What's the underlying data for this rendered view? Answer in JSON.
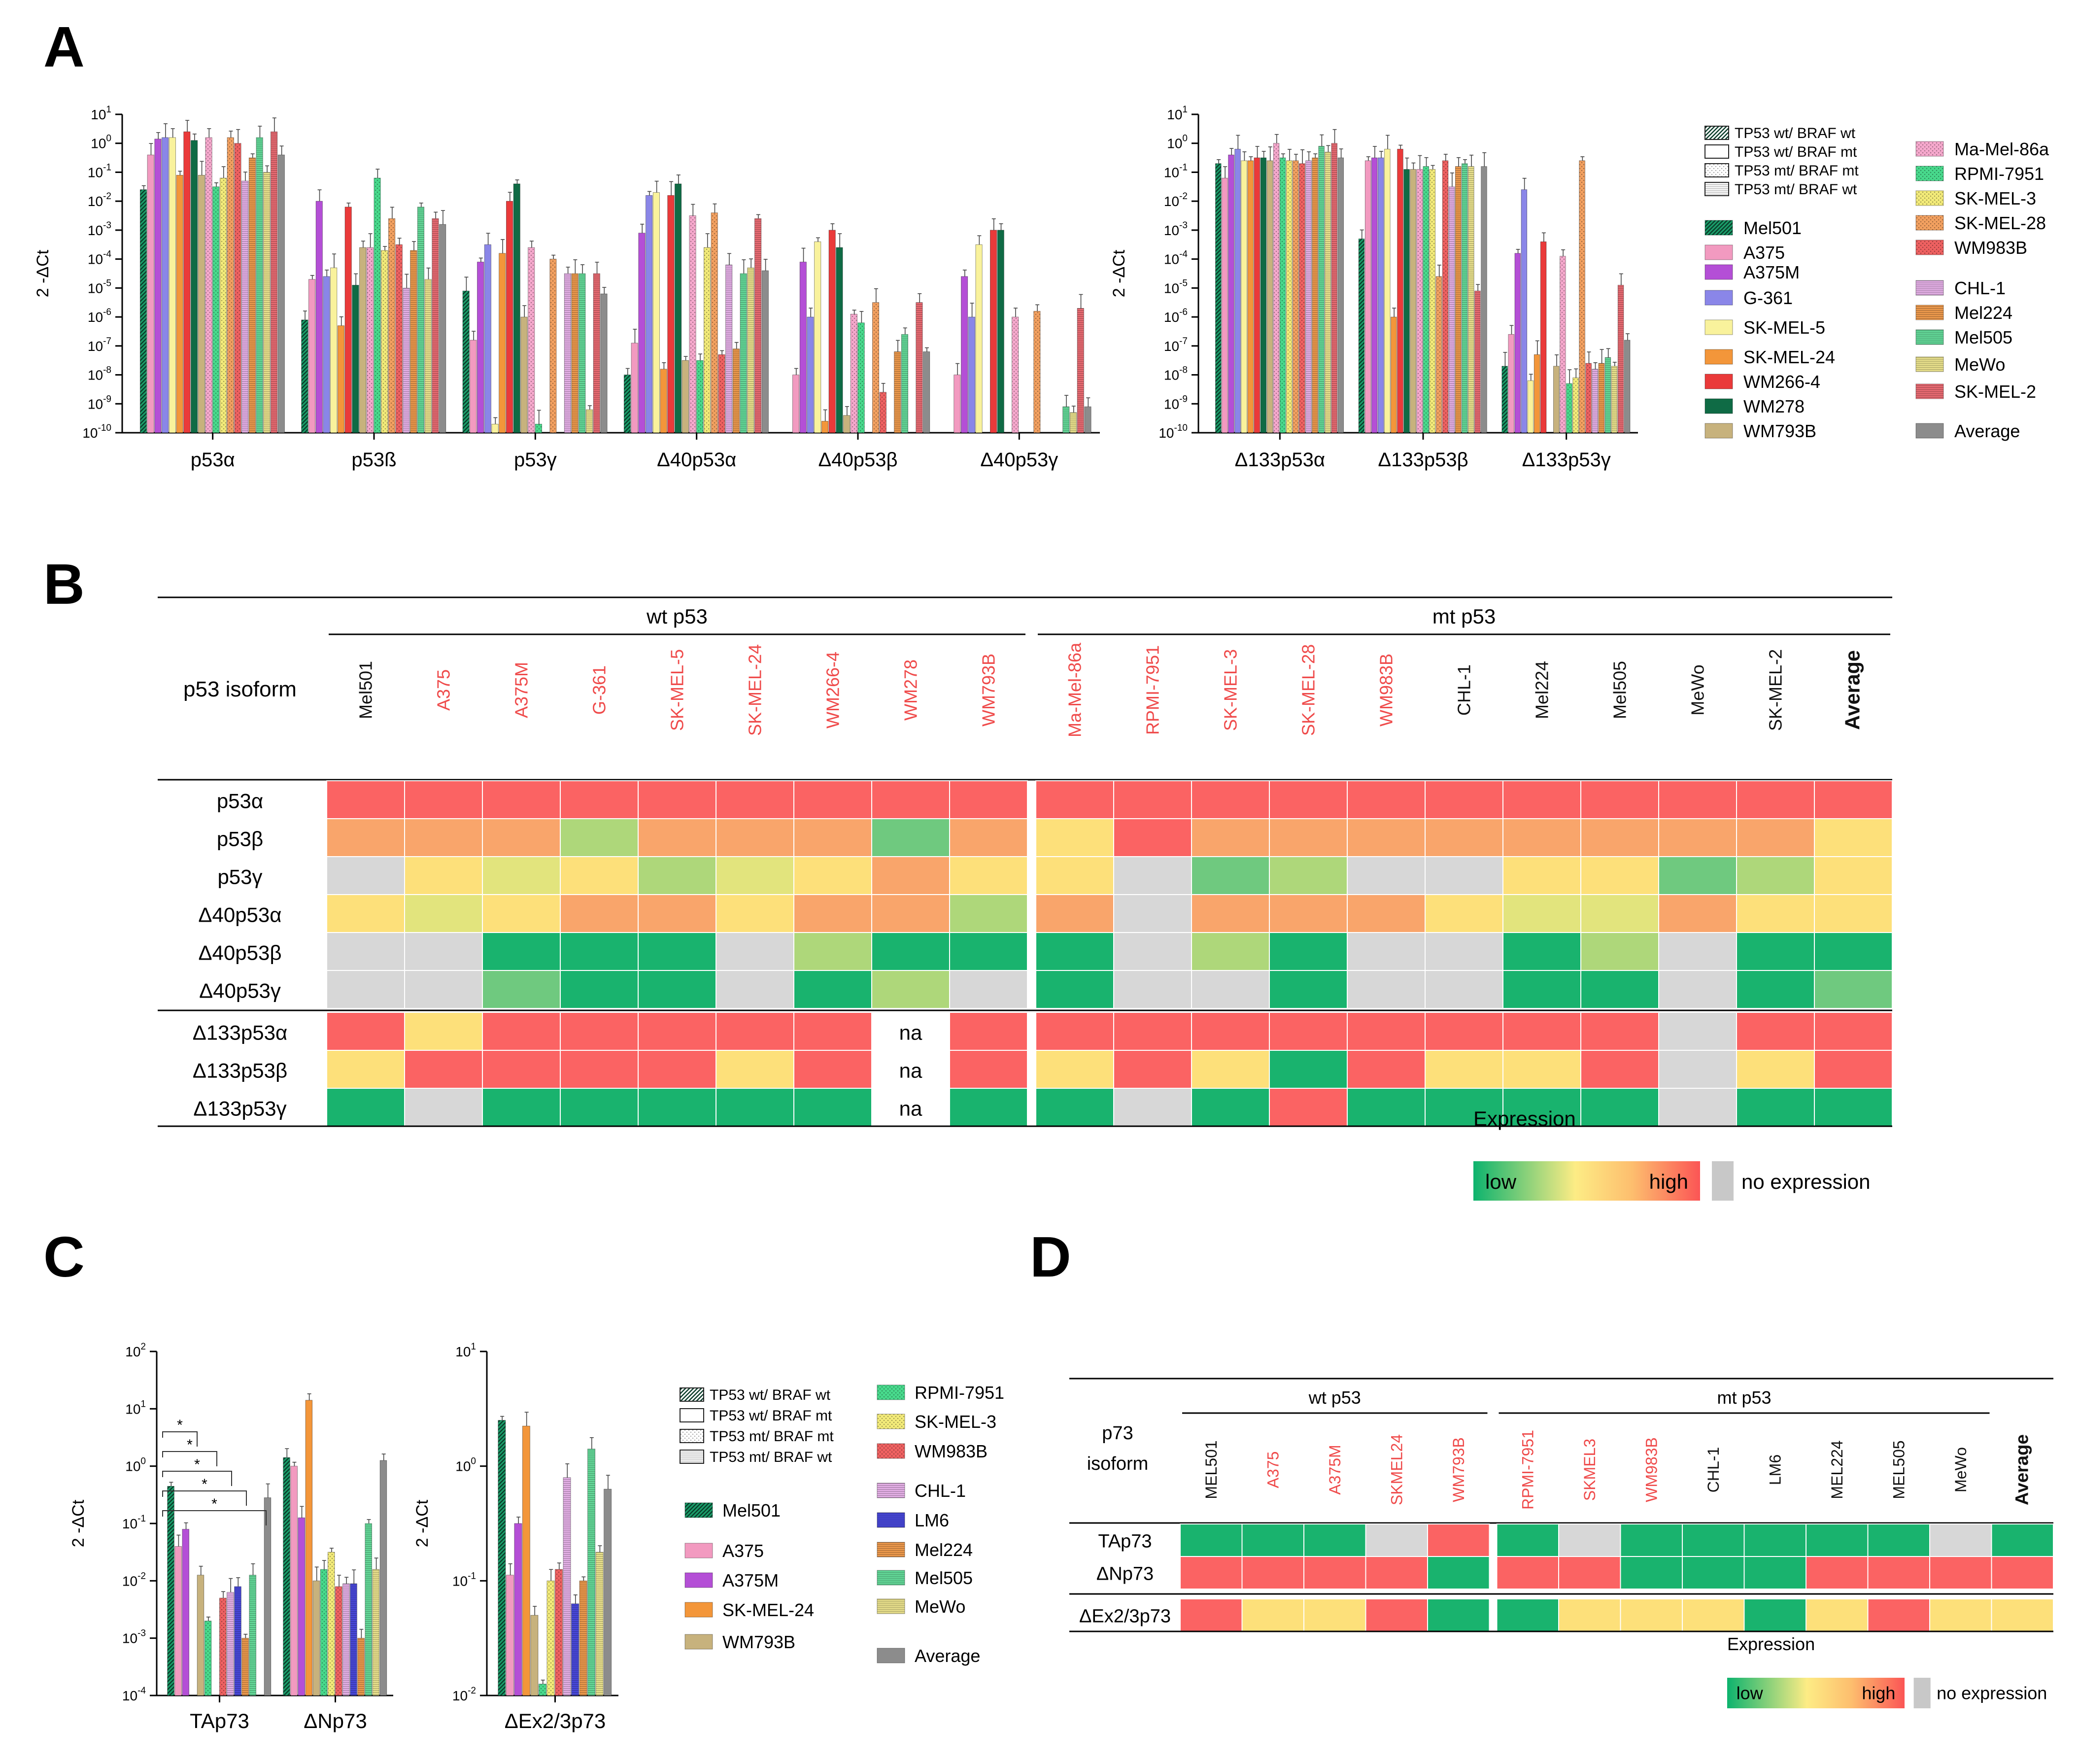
{
  "panel_labels": {
    "a": "A",
    "b": "B",
    "c": "C",
    "d": "D"
  },
  "axis_ylabel": "2 -ΔCt",
  "color_encoding": {
    "red": "#ef4b4b",
    "black": "#111111"
  },
  "cell_lines_p53": [
    {
      "name": "Mel501",
      "color": "#1a9e6a",
      "pattern": "hatch-dense",
      "red": false
    },
    {
      "name": "A375",
      "color": "#f29ac0",
      "pattern": "solid",
      "red": true
    },
    {
      "name": "A375M",
      "color": "#b44fd6",
      "pattern": "solid",
      "red": true
    },
    {
      "name": "G-361",
      "color": "#8a86e8",
      "pattern": "solid",
      "red": true
    },
    {
      "name": "SK-MEL-5",
      "color": "#f9f29c",
      "pattern": "solid",
      "red": true
    },
    {
      "name": "SK-MEL-24",
      "color": "#f3963a",
      "pattern": "solid",
      "red": true
    },
    {
      "name": "WM266-4",
      "color": "#ea3a3a",
      "pattern": "solid",
      "red": true
    },
    {
      "name": "WM278",
      "color": "#0f6b45",
      "pattern": "solid",
      "red": true
    },
    {
      "name": "WM793B",
      "color": "#c7b27d",
      "pattern": "solid",
      "red": true
    },
    {
      "name": "Ma-Mel-86a",
      "color": "#f5a8cc",
      "pattern": "dots",
      "red": true
    },
    {
      "name": "RPMI-7951",
      "color": "#48d98c",
      "pattern": "dots",
      "red": true
    },
    {
      "name": "SK-MEL-3",
      "color": "#f2ea79",
      "pattern": "dots",
      "red": true
    },
    {
      "name": "SK-MEL-28",
      "color": "#f2a060",
      "pattern": "dots",
      "red": true
    },
    {
      "name": "WM983B",
      "color": "#ee6161",
      "pattern": "dots",
      "red": true
    },
    {
      "name": "CHL-1",
      "color": "#eab4ec",
      "pattern": "hlines",
      "red": false
    },
    {
      "name": "Mel224",
      "color": "#f29d4e",
      "pattern": "hlines",
      "red": false
    },
    {
      "name": "Mel505",
      "color": "#66df9d",
      "pattern": "hlines",
      "red": false
    },
    {
      "name": "MeWo",
      "color": "#efe690",
      "pattern": "hlines",
      "red": false
    },
    {
      "name": "SK-MEL-2",
      "color": "#ee6d75",
      "pattern": "hlines",
      "red": false
    },
    {
      "name": "Average",
      "color": "#8c8c8c",
      "pattern": "solid",
      "red": false
    }
  ],
  "pattern_legend": [
    "TP53 wt/ BRAF wt",
    "TP53 wt/ BRAF mt",
    "TP53 mt/ BRAF mt",
    "TP53 mt/ BRAF wt"
  ],
  "chart_data": [
    {
      "id": "A-left",
      "type": "bar",
      "yscale": "log",
      "ylim_exp": [
        -10,
        1
      ],
      "ylabel": "2 -ΔCt",
      "categories": [
        "p53α",
        "p53ß",
        "p53γ",
        "Δ40p53α",
        "Δ40p53β",
        "Δ40p53γ"
      ],
      "values_log10": [
        [
          -1.6,
          -0.4,
          0.15,
          0.2,
          0.2,
          -1.1,
          0.4,
          0.1,
          -1.1,
          0.2,
          -1.5,
          -1.2,
          0.2,
          0.0,
          -1.3,
          -0.5,
          0.2,
          -1.0,
          0.4,
          -0.4
        ],
        [
          -6.1,
          -4.7,
          -2.0,
          -4.6,
          -4.3,
          -6.3,
          -2.2,
          -4.9,
          -3.6,
          -3.6,
          -1.2,
          -3.7,
          -2.6,
          -3.5,
          -5.0,
          -3.7,
          -2.2,
          -4.7,
          -2.6,
          -2.8
        ],
        [
          -5.1,
          -6.8,
          -4.1,
          -3.5,
          -9.7,
          -3.8,
          -2.0,
          -1.4,
          -6.0,
          -3.6,
          -9.7,
          null,
          -4.0,
          null,
          -4.5,
          -4.5,
          -4.5,
          -9.2,
          -4.5,
          -5.2
        ],
        [
          -8.0,
          -6.9,
          -3.1,
          -1.8,
          -1.7,
          -7.8,
          -1.8,
          -1.4,
          -7.5,
          -2.5,
          -7.5,
          -3.6,
          -2.4,
          -7.3,
          -4.2,
          -7.1,
          -4.5,
          -4.3,
          -2.6,
          -4.4
        ],
        [
          null,
          -8.0,
          -4.1,
          -6.0,
          -3.4,
          -9.6,
          -3.0,
          -3.6,
          -9.4,
          -5.9,
          -6.2,
          null,
          -5.5,
          -8.6,
          null,
          -7.2,
          -6.6,
          null,
          -5.5,
          -7.2
        ],
        [
          null,
          -8.0,
          -4.6,
          -6.0,
          -3.5,
          null,
          -3.0,
          -3.0,
          null,
          -6.0,
          null,
          null,
          -5.8,
          null,
          null,
          null,
          -9.1,
          -9.3,
          -5.7,
          -9.1
        ]
      ]
    },
    {
      "id": "A-right",
      "type": "bar",
      "yscale": "log",
      "ylim_exp": [
        -10,
        1
      ],
      "ylabel": "2 -ΔCt",
      "categories": [
        "Δ133p53α",
        "Δ133p53β",
        "Δ133p53γ"
      ],
      "values_log10": [
        [
          -0.7,
          -1.2,
          -0.4,
          -0.2,
          -0.6,
          -0.6,
          -0.5,
          -0.5,
          -0.6,
          0.0,
          -0.5,
          -0.6,
          -0.6,
          -0.7,
          -0.6,
          -0.5,
          -0.1,
          -0.3,
          0.0,
          -0.5
        ],
        [
          -3.3,
          -0.6,
          -0.5,
          -0.5,
          -0.2,
          -6.0,
          -0.2,
          -0.9,
          -0.9,
          -0.9,
          -0.8,
          -0.9,
          -4.6,
          -0.6,
          -1.5,
          -0.8,
          -0.7,
          -0.8,
          -5.1,
          -0.8
        ],
        [
          -7.7,
          -6.6,
          -3.8,
          -1.6,
          -8.2,
          -7.3,
          -3.4,
          null,
          -7.7,
          -3.9,
          -8.3,
          -8.1,
          -0.6,
          -7.6,
          -7.8,
          -7.6,
          -7.4,
          -7.7,
          -4.9,
          -6.8
        ]
      ]
    },
    {
      "id": "C-left",
      "type": "bar",
      "yscale": "log",
      "ylim_exp": [
        -4,
        2
      ],
      "ylabel": "2 -ΔCt",
      "categories": [
        "TAp73",
        "ΔNp73"
      ],
      "series_order": [
        "Mel501",
        "A375",
        "A375M",
        "SK-MEL-24",
        "WM793B",
        "RPMI-7951",
        "SK-MEL-3",
        "WM983B",
        "CHL-1",
        "LM6",
        "Mel224",
        "Mel505",
        "MeWo",
        "Average"
      ],
      "values_log10": [
        [
          -0.35,
          -1.4,
          -1.1,
          null,
          -1.9,
          -2.7,
          null,
          -2.3,
          -2.2,
          -2.1,
          -3.0,
          -1.9,
          null,
          -0.55
        ],
        [
          0.15,
          0.0,
          -0.9,
          1.15,
          -2.0,
          -1.8,
          -1.5,
          -2.1,
          -2.05,
          -2.05,
          -3.0,
          -1.0,
          -1.8,
          0.1
        ]
      ],
      "significance": [
        "*",
        "*",
        "*",
        "*",
        "*"
      ]
    },
    {
      "id": "C-right",
      "type": "bar",
      "yscale": "log",
      "ylim_exp": [
        -2,
        1
      ],
      "ylabel": "2 -ΔCt",
      "categories": [
        "ΔEx2/3p73"
      ],
      "series_order": [
        "Mel501",
        "A375",
        "A375M",
        "SK-MEL-24",
        "WM793B",
        "RPMI-7951",
        "SK-MEL-3",
        "WM983B",
        "CHL-1",
        "LM6",
        "Mel224",
        "Mel505",
        "MeWo",
        "Average"
      ],
      "values_log10": [
        [
          0.4,
          -0.95,
          -0.5,
          0.35,
          -1.3,
          -1.9,
          -1.0,
          -0.9,
          -0.1,
          -1.2,
          -1.0,
          0.15,
          -0.75,
          -0.2
        ]
      ]
    },
    {
      "id": "B",
      "type": "heatmap",
      "groups": [
        {
          "label": "wt p53",
          "count": 9
        },
        {
          "label": "mt p53",
          "count": 11
        }
      ],
      "corner_label": "p53 isoform",
      "columns": [
        "Mel501",
        "A375",
        "A375M",
        "G-361",
        "SK-MEL-5",
        "SK-MEL-24",
        "WM266-4",
        "WM278",
        "WM793B",
        "Ma-Mel-86a",
        "RPMI-7951",
        "SK-MEL-3",
        "SK-MEL-28",
        "WM983B",
        "CHL-1",
        "Mel224",
        "Mel505",
        "MeWo",
        "SK-MEL-2",
        "Average"
      ],
      "column_red": [
        false,
        true,
        true,
        true,
        true,
        true,
        true,
        true,
        true,
        true,
        true,
        true,
        true,
        true,
        false,
        false,
        false,
        false,
        false,
        false
      ],
      "rows": [
        "p53α",
        "p53β",
        "p53γ",
        "Δ40p53α",
        "Δ40p53β",
        "Δ40p53γ",
        "Δ133p53α",
        "Δ133p53β",
        "Δ133p53γ"
      ],
      "levels": [
        [
          "h",
          "h",
          "h",
          "h",
          "h",
          "h",
          "h",
          "h",
          "h",
          "h",
          "h",
          "h",
          "h",
          "h",
          "h",
          "h",
          "h",
          "h",
          "h",
          "h"
        ],
        [
          "o",
          "o",
          "o",
          "lg",
          "o",
          "o",
          "o",
          "g",
          "o",
          "y",
          "h",
          "o",
          "o",
          "o",
          "o",
          "o",
          "o",
          "o",
          "o",
          "y"
        ],
        [
          "n",
          "y",
          "yg",
          "y",
          "lg",
          "yg",
          "y",
          "o",
          "y",
          "y",
          "n",
          "g",
          "lg",
          "n",
          "n",
          "y",
          "y",
          "g",
          "lg",
          "y"
        ],
        [
          "y",
          "yg",
          "y",
          "o",
          "o",
          "y",
          "o",
          "o",
          "lg",
          "o",
          "n",
          "o",
          "o",
          "o",
          "y",
          "yg",
          "yg",
          "o",
          "y",
          "y"
        ],
        [
          "n",
          "n",
          "G",
          "G",
          "G",
          "n",
          "lg",
          "G",
          "G",
          "G",
          "n",
          "lg",
          "G",
          "n",
          "n",
          "G",
          "lg",
          "n",
          "G",
          "G"
        ],
        [
          "n",
          "n",
          "g",
          "G",
          "G",
          "n",
          "G",
          "lg",
          "n",
          "G",
          "n",
          "n",
          "G",
          "n",
          "n",
          "G",
          "G",
          "n",
          "G",
          "g"
        ],
        [
          "h",
          "y",
          "h",
          "h",
          "h",
          "h",
          "h",
          "na",
          "h",
          "h",
          "h",
          "h",
          "h",
          "h",
          "h",
          "h",
          "h",
          "n",
          "h",
          "h"
        ],
        [
          "y",
          "h",
          "h",
          "h",
          "h",
          "y",
          "h",
          "na",
          "h",
          "y",
          "h",
          "y",
          "G",
          "h",
          "y",
          "y",
          "h",
          "n",
          "y",
          "h"
        ],
        [
          "G",
          "n",
          "G",
          "G",
          "G",
          "G",
          "G",
          "na",
          "G",
          "G",
          "n",
          "G",
          "h",
          "G",
          "G",
          "G",
          "G",
          "n",
          "G",
          "G"
        ]
      ],
      "na_label": "na",
      "legend": {
        "title": "Expression",
        "low": "low",
        "high": "high",
        "none": "no expression"
      }
    },
    {
      "id": "D",
      "type": "heatmap",
      "groups": [
        {
          "label": "wt p53",
          "count": 5
        },
        {
          "label": "mt p53",
          "count": 8
        }
      ],
      "corner_label_1": "p73",
      "corner_label_2": "isoform",
      "columns": [
        "MEL501",
        "A375",
        "A375M",
        "SKMEL24",
        "WM793B",
        "RPMI-7951",
        "SKMEL3",
        "WM983B",
        "CHL-1",
        "LM6",
        "MEL224",
        "MEL505",
        "MeWo",
        "Average"
      ],
      "column_red": [
        false,
        true,
        true,
        true,
        true,
        true,
        true,
        true,
        false,
        false,
        false,
        false,
        false,
        false
      ],
      "rows": [
        "TAp73",
        "ΔNp73",
        "ΔEx2/3p73"
      ],
      "levels": [
        [
          "G",
          "G",
          "G",
          "n",
          "h",
          "G",
          "n",
          "G",
          "G",
          "G",
          "G",
          "G",
          "n",
          "G"
        ],
        [
          "h",
          "h",
          "h",
          "h",
          "G",
          "h",
          "h",
          "G",
          "G",
          "G",
          "h",
          "h",
          "h",
          "h"
        ],
        [
          "h",
          "y",
          "y",
          "h",
          "G",
          "G",
          "y",
          "y",
          "y",
          "G",
          "y",
          "h",
          "y",
          "y"
        ]
      ],
      "legend": {
        "title": "Expression",
        "low": "low",
        "high": "high",
        "none": "no expression"
      }
    }
  ]
}
